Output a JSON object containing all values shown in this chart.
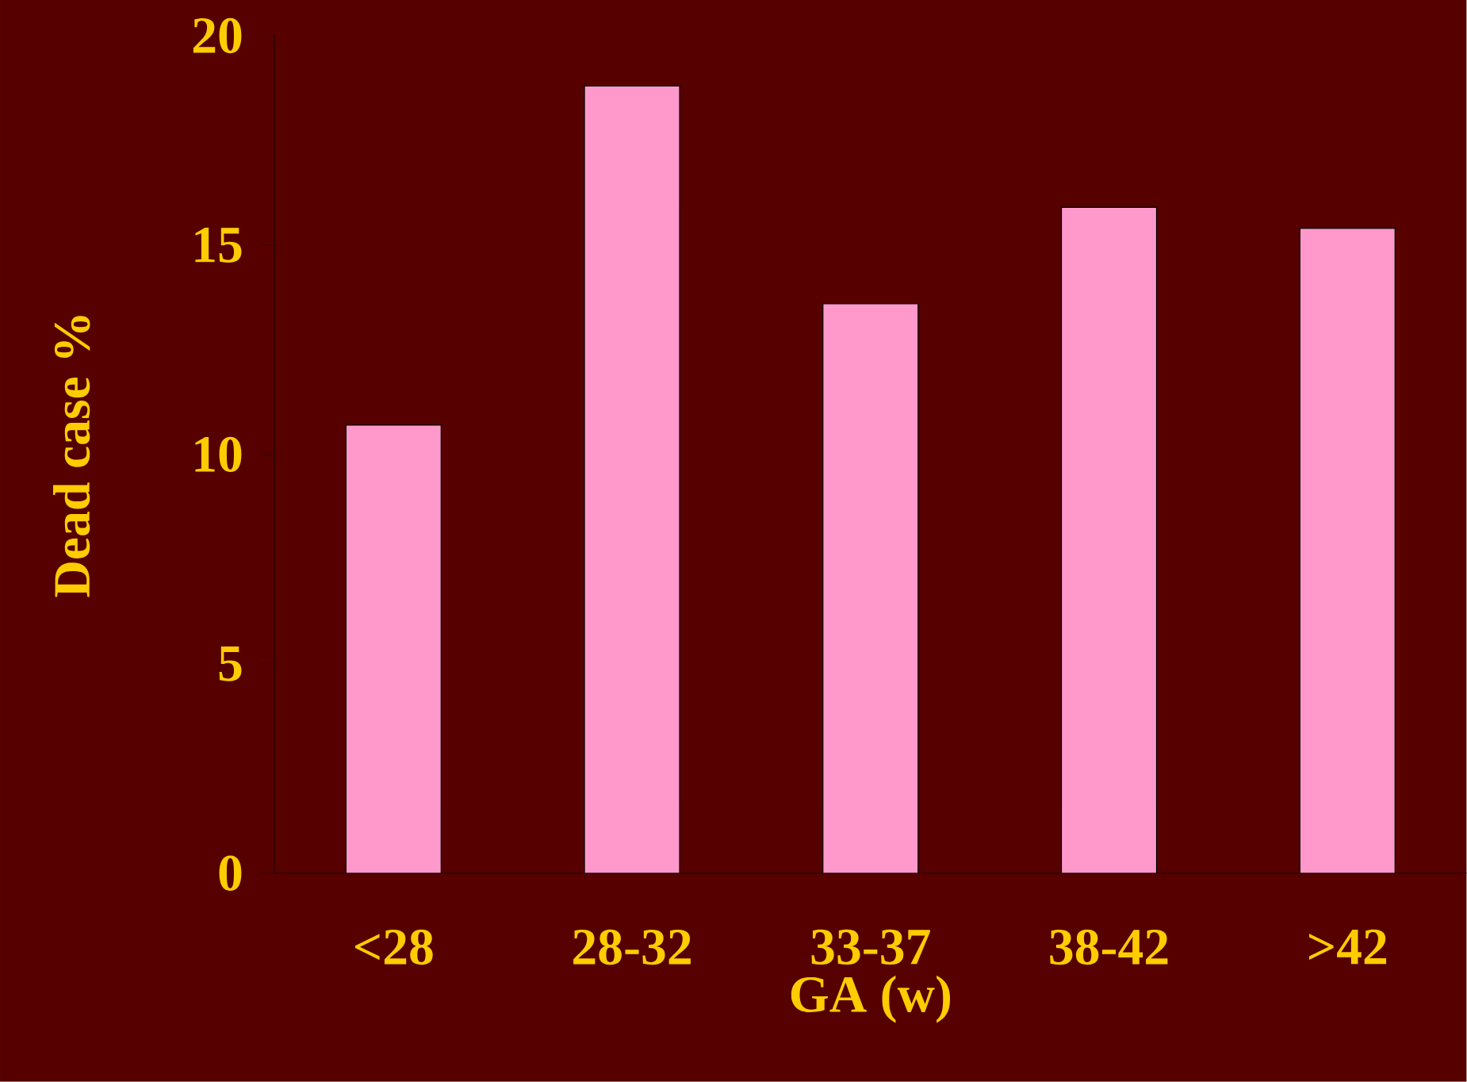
{
  "chart_data": {
    "type": "bar",
    "xlabel": "GA (w)",
    "ylabel": "Dead case %",
    "categories": [
      "<28",
      "28-32",
      "33-37",
      "38-42",
      ">42"
    ],
    "values": [
      10.7,
      18.8,
      13.6,
      15.9,
      15.4
    ],
    "color": "#ff99cc",
    "ylim": [
      0,
      20
    ],
    "yticks": [
      0,
      5,
      10,
      15,
      20
    ],
    "grid": false
  }
}
